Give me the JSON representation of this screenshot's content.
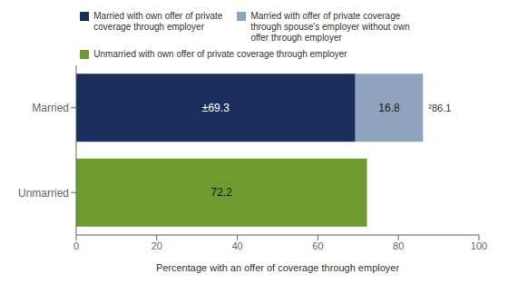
{
  "chart_data": {
    "type": "bar",
    "orientation": "horizontal",
    "stacked": true,
    "data_labels": true,
    "grid": false,
    "legend": "top",
    "categories": [
      "Unmarried",
      "Married"
    ],
    "series": [
      {
        "name": "Married with own offer of private\ncoverage through employer",
        "color": "#1b2f5e",
        "values": [
          null,
          69.3
        ],
        "value_labels": [
          null,
          "±69.3"
        ]
      },
      {
        "name": "Married with offer of private coverage\nthrough spouse's employer without own\noffer through employer",
        "color": "#8fa3be",
        "values": [
          null,
          16.8
        ]
      },
      {
        "name": "Unmarried with own offer of private coverage through employer",
        "color": "#6e9b2f",
        "values": [
          72.2,
          null
        ]
      }
    ],
    "xlabel": "Percentage with an offer of coverage through employer",
    "xlim": [
      0,
      100
    ],
    "xticks": [
      0,
      20,
      40,
      60,
      80,
      100
    ],
    "annotations": [
      {
        "text": "²86.1",
        "category": "Married",
        "x": 86.1
      }
    ]
  }
}
